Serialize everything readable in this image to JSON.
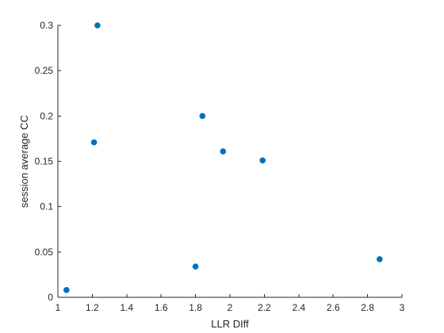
{
  "chart_data": {
    "type": "scatter",
    "xlabel": "LLR DIff",
    "ylabel": "session average CC",
    "xlim": [
      1,
      3
    ],
    "ylim": [
      0,
      0.3
    ],
    "xticks": [
      "1",
      "1.2",
      "1.4",
      "1.6",
      "1.8",
      "2",
      "2.2",
      "2.4",
      "2.6",
      "2.8",
      "3"
    ],
    "yticks": [
      "0",
      "0.05",
      "0.1",
      "0.15",
      "0.2",
      "0.25",
      "0.3"
    ],
    "grid": false,
    "marker_color": "#0072BD",
    "series": [
      {
        "x": [
          1.05,
          1.21,
          1.23,
          1.8,
          1.84,
          1.96,
          2.19,
          2.87
        ],
        "y": [
          0.008,
          0.171,
          0.3,
          0.034,
          0.2,
          0.161,
          0.151,
          0.042
        ]
      }
    ]
  }
}
